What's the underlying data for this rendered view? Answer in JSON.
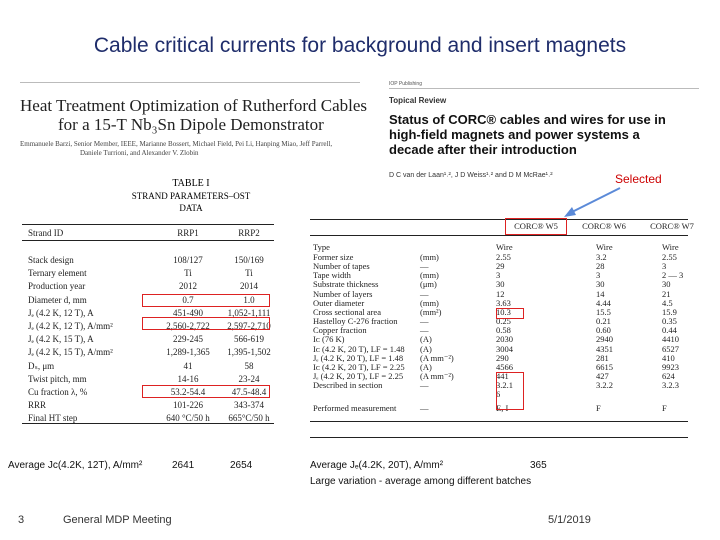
{
  "slide": {
    "title": "Cable critical currents for background and insert magnets",
    "page_number": "3",
    "footer_text": "General MDP Meeting",
    "date": "5/1/2019"
  },
  "left_paper": {
    "title_line1": "Heat Treatment Optimization of Rutherford Cables",
    "title_line2": "for a 15-T Nb₃Sn Dipole Demonstrator",
    "authors_line1": "Emmanuele Barzi, Senior Member, IEEE, Marianne Bossert, Michael Field, Pei Li, Hanping Miao, Jeff Parrell,",
    "authors_line2": "Daniele Turrioni, and Alexander V. Zlobin",
    "table_caption_line1": "TABLE I",
    "table_caption_line2": "STRAND PARAMETERS–OST DATA",
    "table": {
      "headers": [
        "Strand ID",
        "RRP1",
        "RRP2"
      ],
      "rows": [
        [
          "Stack design",
          "108/127",
          "150/169"
        ],
        [
          "Ternary element",
          "Ti",
          "Ti"
        ],
        [
          "Production year",
          "2012",
          "2014"
        ],
        [
          "Diameter d, mm",
          "0.7",
          "1.0"
        ],
        [
          "Jₑ (4.2 K, 12 T), A",
          "451-490",
          "1,052-1,111"
        ],
        [
          "Jₑ (4.2 K, 12 T), A/mm²",
          "2,560-2,722",
          "2,597-2,710"
        ],
        [
          "Jₑ (4.2 K, 15 T), A",
          "229-245",
          "566-619"
        ],
        [
          "Jₑ (4.2 K, 15 T), A/mm²",
          "1,289-1,365",
          "1,395-1,502"
        ],
        [
          "Dₛ, μm",
          "41",
          "58"
        ],
        [
          "Twist pitch, mm",
          "14-16",
          "23-24"
        ],
        [
          "Cu fraction λ, %",
          "53.2-54.4",
          "47.5-48.4"
        ],
        [
          "RRR",
          "101-226",
          "343-374"
        ],
        [
          "Final HT step",
          "640 °C/50 h",
          "665°C/50 h"
        ]
      ]
    },
    "average_label": "Average Jᴄ(4.2K, 12T), A/mm²",
    "average_rrp1": "2641",
    "average_rrp2": "2654"
  },
  "right_paper": {
    "journal_name": "IOP Publishing",
    "topical_review": "Topical Review",
    "title_line1": "Status of CORC® cables and wires for use in",
    "title_line2": "high-field magnets and power systems a",
    "title_line3": "decade after their introduction",
    "authors": "D C van der Laan¹˒², J D Weiss¹˒² and D M McRae¹˒²",
    "selected_label": "Selected",
    "table": {
      "col_headers": [
        "CORC® W5",
        "CORC® W6",
        "CORC® W7"
      ],
      "type_label": "Type",
      "type_values": [
        "Wire",
        "Wire",
        "Wire"
      ],
      "rows": [
        [
          "Former size",
          "(mm)",
          "2.55",
          "3.2",
          "2.55"
        ],
        [
          "Number of tapes",
          "—",
          "29",
          "28",
          "3"
        ],
        [
          "Tape width",
          "(mm)",
          "3",
          "3",
          "2 — 3"
        ],
        [
          "Substrate thickness",
          "(μm)",
          "30",
          "30",
          "30"
        ],
        [
          "Number of layers",
          "—",
          "12",
          "14",
          "21"
        ],
        [
          "Outer diameter",
          "(mm)",
          "3.63",
          "4.44",
          "4.5"
        ],
        [
          "Cross sectional area",
          "(mm²)",
          "10.3",
          "15.5",
          "15.9"
        ],
        [
          "Hastelloy C-276 fraction",
          "—",
          "0.25",
          "0.21",
          "0.35"
        ],
        [
          "Copper fraction",
          "—",
          "0.58",
          "0.60",
          "0.44"
        ],
        [
          "Iᴄ (76 K)",
          "(A)",
          "2030",
          "2940",
          "4410"
        ],
        [
          "Iᴄ (4.2 K, 20 T), LF = 1.48",
          "(A)",
          "3004",
          "4351",
          "6527"
        ],
        [
          "Jₑ (4.2 K, 20 T), LF = 1.48",
          "(A mm⁻²)",
          "290",
          "281",
          "410"
        ],
        [
          "Iᴄ (4.2 K, 20 T), LF = 2.25",
          "(A)",
          "4566",
          "6615",
          "9923"
        ],
        [
          "Jₑ (4.2 K, 20 T), LF = 2.25",
          "(A mm⁻²)",
          "441",
          "427",
          "624"
        ],
        [
          "Described in section",
          "—",
          "3.2.1",
          "3.2.2",
          "3.2.3"
        ],
        [
          "",
          "",
          "6",
          "",
          ""
        ],
        [
          "Performed measurement",
          "—",
          "E, I",
          "F",
          "F"
        ]
      ]
    },
    "average_label": "Average Jₑ(4.2K, 20T), A/mm²",
    "average_value": "365",
    "variation_note": "Large variation -  average among different batches"
  },
  "colors": {
    "title": "#1f2d6b",
    "highlight": "#dd2222"
  }
}
